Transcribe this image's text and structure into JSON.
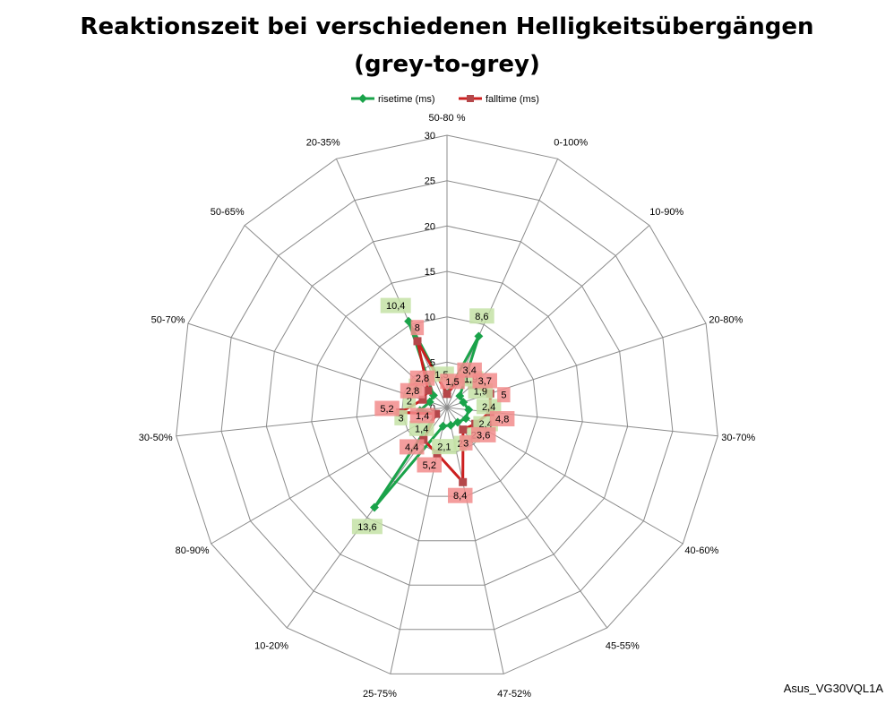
{
  "chart_data": {
    "type": "radar",
    "title_lines": [
      "Reaktionszeit bei verschiedenen Helligkeitsübergängen",
      "(grey-to-grey)"
    ],
    "categories": [
      "50-80 %",
      "0-100%",
      "10-90%",
      "20-80%",
      "30-70%",
      "40-60%",
      "45-55%",
      "47-52%",
      "25-75%",
      "10-20%",
      "80-90%",
      "30-50%",
      "50-70%",
      "50-65%",
      "20-35%"
    ],
    "axis": {
      "min": 0,
      "max": 30,
      "step": 5,
      "ticks": [
        "0",
        "5",
        "10",
        "15",
        "20",
        "25",
        "30"
      ]
    },
    "legend_position": "top",
    "series": [
      {
        "name": "risetime (ms)",
        "color": "#1aa34a",
        "label_bg": "#c4e2a6",
        "values": [
          1.5,
          8.6,
          1.9,
          1.9,
          2.4,
          2.4,
          2,
          2,
          2.1,
          13.6,
          1.4,
          3,
          2,
          2,
          10.4
        ],
        "labels": [
          "1,5",
          "8,6",
          "1,9",
          "1,9",
          "2,4",
          "2,4",
          "2",
          "2",
          "2,1",
          "13,6",
          "1,4",
          "3",
          "2",
          "2",
          "10,4"
        ]
      },
      {
        "name": "falltime (ms)",
        "color": "#cc1f1f",
        "label_bg": "#f28c8c",
        "values": [
          1.5,
          3.4,
          3.7,
          5,
          4.8,
          3.6,
          3,
          8.4,
          5.2,
          4.4,
          1.4,
          5.2,
          2.8,
          2.8,
          8
        ],
        "labels": [
          "1,5",
          "3,4",
          "3,7",
          "5",
          "4,8",
          "3,6",
          "3",
          "8,4",
          "5,2",
          "4,4",
          "1,4",
          "5,2",
          "2,8",
          "2,8",
          "8"
        ]
      }
    ]
  },
  "watermark": "Asus_VG30VQL1A"
}
